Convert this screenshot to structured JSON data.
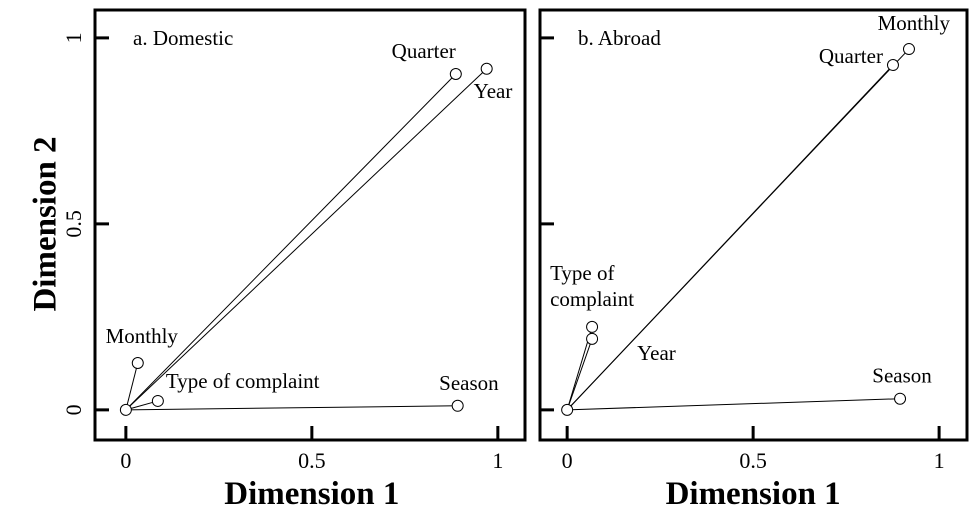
{
  "chart_data": [
    {
      "type": "scatter",
      "title": "a. Domestic",
      "x_label": "Dimension 1",
      "y_label": "Dimension 2",
      "labels": [
        "Quarter",
        "Year",
        "Monthly",
        "Type of complaint",
        "Season"
      ],
      "x": [
        0.887,
        0.97,
        0.032,
        0.086,
        0.892
      ],
      "values": [
        0.903,
        0.917,
        0.126,
        0.024,
        0.011
      ],
      "xlim": [
        -0.083,
        1.073
      ],
      "ylim": [
        -0.081,
        1.075
      ],
      "xticks": [
        0,
        0.5,
        1
      ],
      "yticks": [
        0,
        0.5,
        1
      ]
    },
    {
      "type": "scatter",
      "title": "b. Abroad",
      "x_label": "Dimension 1",
      "labels": [
        "Monthly",
        "Quarter",
        "Type of complaint",
        "Year",
        "Season"
      ],
      "x": [
        0.919,
        0.876,
        0.067,
        0.067,
        0.895
      ],
      "values": [
        0.97,
        0.927,
        0.223,
        0.191,
        0.03
      ],
      "xlim": [
        -0.073,
        1.075
      ],
      "ylim": [
        -0.081,
        1.075
      ],
      "xticks": [
        0,
        0.5,
        1
      ],
      "yticks": [
        0,
        0.5,
        1
      ]
    }
  ]
}
